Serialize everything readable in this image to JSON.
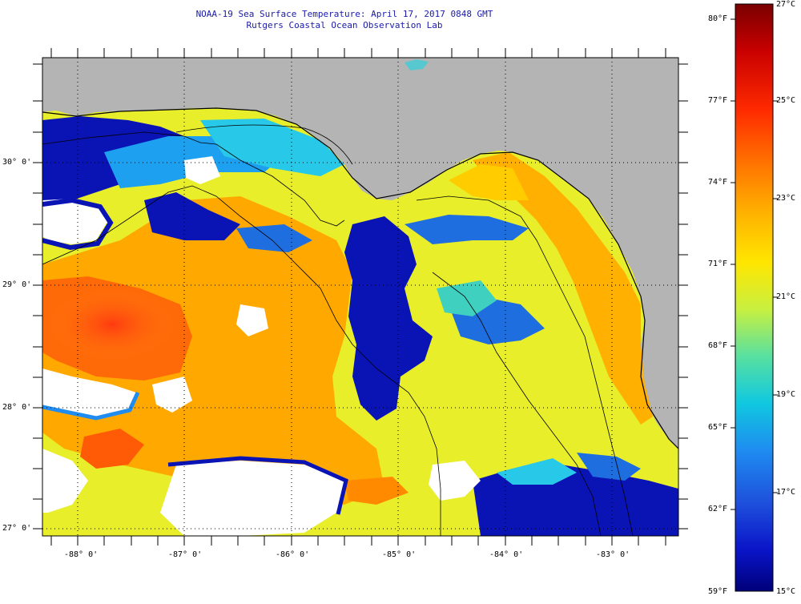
{
  "header": {
    "line1": "NOAA-19 Sea Surface Temperature:  April 17, 2017 0848 GMT",
    "line2": "Rutgers Coastal Ocean Observation Lab"
  },
  "map": {
    "lat_labels": [
      "30° 0'",
      "29° 0'",
      "28° 0'",
      "27° 0'"
    ],
    "lon_labels": [
      "-88° 0'",
      "-87° 0'",
      "-86° 0'",
      "-85° 0'",
      "-84° 0'",
      "-83° 0'"
    ],
    "colors": {
      "land": "#b4b4b4",
      "no_data": "#ffffff",
      "coast": "#000000",
      "grid": "#000000"
    }
  },
  "colorbar": {
    "fahrenheit_labels": [
      "80°F",
      "77°F",
      "74°F",
      "71°F",
      "68°F",
      "65°F",
      "62°F",
      "59°F"
    ],
    "celsius_labels": [
      "27°C",
      "25°C",
      "23°C",
      "21°C",
      "19°C",
      "17°C",
      "15°C"
    ],
    "gradient_stops": [
      "#7a0000",
      "#c80000",
      "#ff2a00",
      "#ff7a00",
      "#ffb400",
      "#ffe600",
      "#c8f040",
      "#58e0a0",
      "#10c8e0",
      "#1e8cf0",
      "#1e50dc",
      "#0a14c8",
      "#00007a"
    ]
  }
}
